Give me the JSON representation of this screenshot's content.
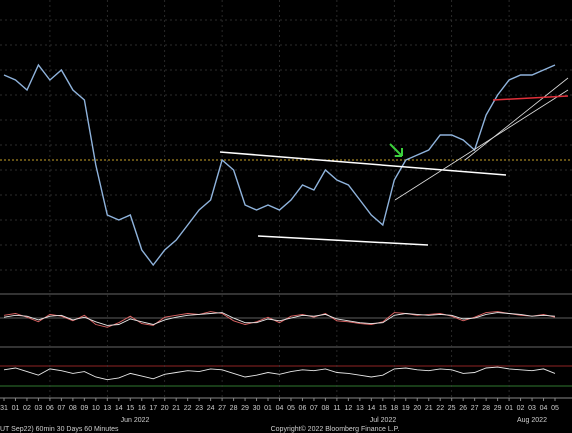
{
  "chart_data": [
    {
      "type": "line",
      "categories": [
        "31",
        "01",
        "02",
        "03",
        "06",
        "07",
        "08",
        "09",
        "10",
        "13",
        "14",
        "15",
        "16",
        "17",
        "20",
        "21",
        "22",
        "23",
        "24",
        "27",
        "28",
        "29",
        "30",
        "01",
        "04",
        "05",
        "06",
        "07",
        "08",
        "11",
        "12",
        "13",
        "14",
        "15",
        "18",
        "19",
        "20",
        "21",
        "22",
        "25",
        "26",
        "27",
        "28",
        "29",
        "01",
        "02",
        "03",
        "04",
        "05"
      ],
      "series": [
        {
          "color": "#8fb3dc",
          "values": [
            217,
            212,
            202,
            227,
            212,
            222,
            202,
            192,
            127,
            77,
            72,
            77,
            42,
            27,
            42,
            52,
            67,
            82,
            92,
            132,
            122,
            87,
            82,
            87,
            82,
            92,
            107,
            102,
            122,
            112,
            107,
            92,
            77,
            67,
            112,
            132,
            137,
            142,
            157,
            157,
            152,
            142,
            177,
            197,
            212,
            217,
            217,
            222,
            227
          ]
        }
      ],
      "ylim": [
        0,
        292
      ],
      "month_labels": [
        "Jun 2022",
        "Jul 2022",
        "Aug 2022"
      ],
      "footer": [
        "UT  Sep22) 60min 30 Days 60 Minutes",
        "Copyright© 2022 Bloomberg Finance L.P."
      ]
    },
    {
      "type": "line",
      "series": [
        {
          "color": "#e06666",
          "values": [
            4,
            6,
            2,
            -3,
            5,
            3,
            -2,
            4,
            -6,
            -9,
            -4,
            3,
            -5,
            -7,
            2,
            4,
            6,
            5,
            8,
            6,
            -2,
            -6,
            -3,
            2,
            -4,
            3,
            5,
            2,
            6,
            -2,
            -3,
            -5,
            -6,
            -3,
            7,
            6,
            4,
            5,
            6,
            3,
            -2,
            2,
            7,
            8,
            6,
            4,
            3,
            5,
            2
          ]
        },
        {
          "color": "#e8e8e8",
          "values": [
            2,
            4,
            3,
            -1,
            3,
            4,
            -1,
            2,
            -3,
            -7,
            -6,
            0,
            -3,
            -6,
            -1,
            2,
            4,
            5,
            6,
            7,
            1,
            -4,
            -4,
            0,
            -2,
            1,
            4,
            3,
            5,
            0,
            -2,
            -4,
            -5,
            -4,
            4,
            6,
            5,
            4,
            5,
            4,
            0,
            1,
            5,
            7,
            6,
            5,
            3,
            4,
            3
          ]
        }
      ],
      "ylim": [
        -25,
        25
      ]
    },
    {
      "type": "line",
      "series": [
        {
          "color": "#e8e8e8",
          "values": [
            28,
            30,
            26,
            22,
            29,
            27,
            24,
            26,
            20,
            17,
            19,
            24,
            21,
            18,
            23,
            25,
            27,
            26,
            29,
            28,
            24,
            20,
            22,
            25,
            23,
            26,
            28,
            27,
            29,
            25,
            24,
            22,
            20,
            22,
            29,
            30,
            28,
            27,
            29,
            28,
            24,
            25,
            30,
            31,
            29,
            28,
            27,
            29,
            24
          ]
        }
      ],
      "ylim": [
        0,
        50
      ]
    }
  ]
}
